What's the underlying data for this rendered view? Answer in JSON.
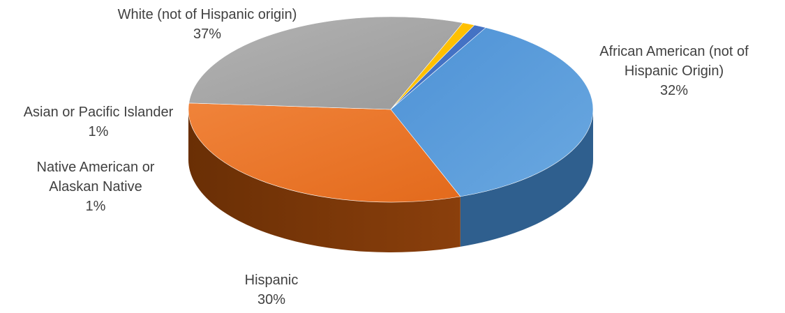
{
  "chart_data": {
    "type": "pie",
    "style": "3d-exploded-depth",
    "title": "",
    "slices": [
      {
        "label": "White (not of Hispanic origin)",
        "value": 37,
        "display": "37%",
        "color": "#5b9bd5"
      },
      {
        "label": "African American (not of Hispanic Origin)",
        "value": 32,
        "display": "32%",
        "color": "#ed7d31"
      },
      {
        "label": "Hispanic",
        "value": 30,
        "display": "30%",
        "color": "#a5a5a5"
      },
      {
        "label": "Native American or Alaskan Native",
        "value": 1,
        "display": "1%",
        "color": "#ffc000"
      },
      {
        "label": "Asian or Pacific Islander",
        "value": 1,
        "display": "1%",
        "color": "#4472c4"
      }
    ],
    "labels": {
      "white": {
        "lines": [
          "White (not of Hispanic origin)",
          "37%"
        ]
      },
      "african_american": {
        "lines": [
          "African American (not of",
          "Hispanic Origin)",
          "32%"
        ]
      },
      "hispanic": {
        "lines": [
          "Hispanic",
          "30%"
        ]
      },
      "native_american": {
        "lines": [
          "Native American or",
          "Alaskan Native",
          "1%"
        ]
      },
      "asian": {
        "lines": [
          "Asian or Pacific Islander",
          "1%"
        ]
      }
    },
    "legend": "none",
    "data_labels": "outside"
  }
}
